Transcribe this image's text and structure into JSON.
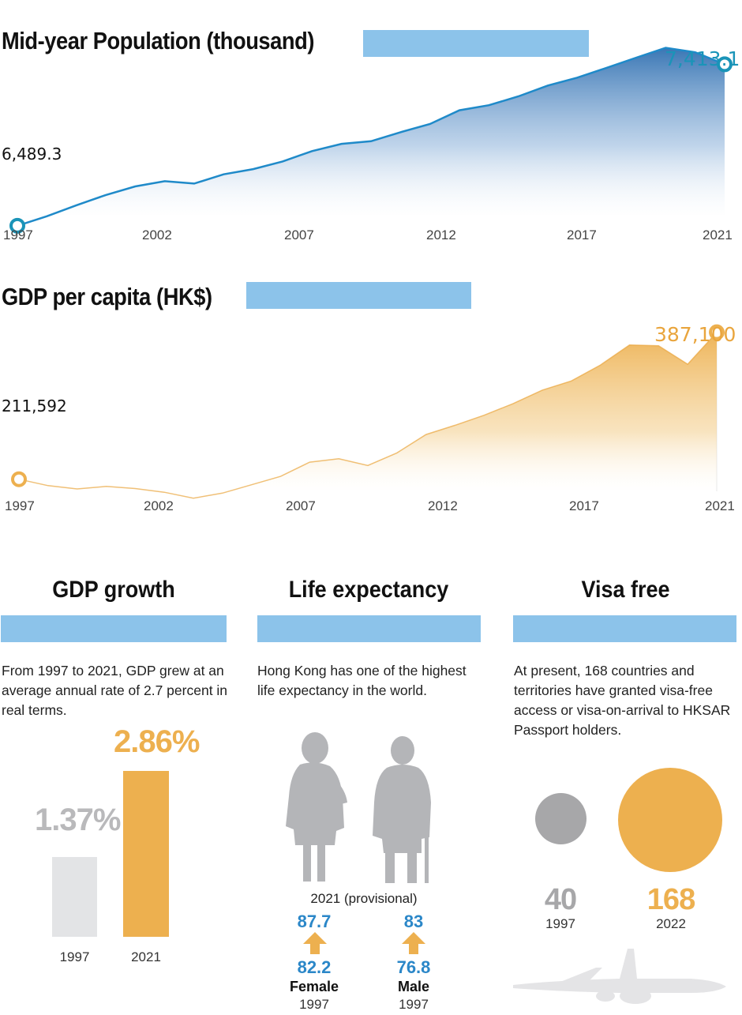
{
  "population": {
    "title": "Mid-year Population (thousand)",
    "start_label": "6,489.3",
    "end_label": "7,413.1",
    "colors": {
      "line": "#1f8ac9",
      "fill_top": "#2f6fb0",
      "marker": "#1a94b8"
    }
  },
  "gdp_per_capita": {
    "title": "GDP per capita (HK$)",
    "start_label": "211,592",
    "end_label": "387,100",
    "colors": {
      "fill": "#edb04f",
      "marker": "#edb04f",
      "label": "#e9a53d"
    }
  },
  "x_ticks": [
    "1997",
    "2002",
    "2007",
    "2012",
    "2017",
    "2021"
  ],
  "gdp_growth": {
    "title": "GDP growth",
    "text": "From 1997 to 2021, GDP grew at an average annual rate of 2.7 percent in real terms.",
    "bars": [
      {
        "label": "1997",
        "value_label": "1.37%",
        "value": 1.37,
        "color": "#e3e4e6",
        "text_color": "#b9b9bb"
      },
      {
        "label": "2021",
        "value_label": "2.86%",
        "value": 2.86,
        "color": "#edb04f",
        "text_color": "#edb04f"
      }
    ]
  },
  "life_expectancy": {
    "title": "Life expectancy",
    "text": "Hong Kong has one of the highest life expectancy in the world.",
    "provisional_label": "2021 (provisional)",
    "female": {
      "value_2021": "87.7",
      "value_1997": "82.2",
      "label": "Female",
      "year": "1997"
    },
    "male": {
      "value_2021": "83",
      "value_1997": "76.8",
      "label": "Male",
      "year": "1997"
    }
  },
  "visa_free": {
    "title": "Visa free",
    "text": "At present, 168 countries and territories have granted visa-free access or visa-on-arrival to HKSAR Passport holders.",
    "items": [
      {
        "value": "40",
        "year": "1997",
        "color": "#a7a7a9"
      },
      {
        "value": "168",
        "year": "2022",
        "color": "#edb04f"
      }
    ]
  },
  "chart_data": [
    {
      "type": "area",
      "title": "Mid-year Population (thousand)",
      "x": [
        1997,
        1998,
        1999,
        2000,
        2001,
        2002,
        2003,
        2004,
        2005,
        2006,
        2007,
        2008,
        2009,
        2010,
        2011,
        2012,
        2013,
        2014,
        2015,
        2016,
        2017,
        2018,
        2019,
        2020,
        2021
      ],
      "values": [
        6489.3,
        6543.7,
        6606.5,
        6665.0,
        6714.3,
        6744.1,
        6730.8,
        6783.5,
        6813.2,
        6857.1,
        6916.3,
        6957.8,
        6972.8,
        7024.2,
        7071.6,
        7150.1,
        7178.9,
        7229.5,
        7291.3,
        7336.6,
        7393.2,
        7451.0,
        7507.4,
        7481.8,
        7413.1
      ],
      "ylim": [
        6100,
        7600
      ],
      "annotations": [
        "6,489.3",
        "7,413.1"
      ]
    },
    {
      "type": "area",
      "title": "GDP per capita (HK$)",
      "x": [
        1997,
        1998,
        1999,
        2000,
        2001,
        2002,
        2003,
        2004,
        2005,
        2006,
        2007,
        2008,
        2009,
        2010,
        2011,
        2012,
        2013,
        2014,
        2015,
        2016,
        2017,
        2018,
        2019,
        2020,
        2021
      ],
      "values": [
        211592,
        204000,
        200000,
        203000,
        200500,
        196000,
        189000,
        195000,
        205000,
        215000,
        232000,
        236000,
        228000,
        243000,
        265000,
        276000,
        288000,
        302000,
        318000,
        329000,
        348000,
        372000,
        371000,
        349000,
        387100
      ],
      "ylim": [
        100000,
        400000
      ],
      "annotations": [
        "211,592",
        "387,100"
      ]
    }
  ]
}
